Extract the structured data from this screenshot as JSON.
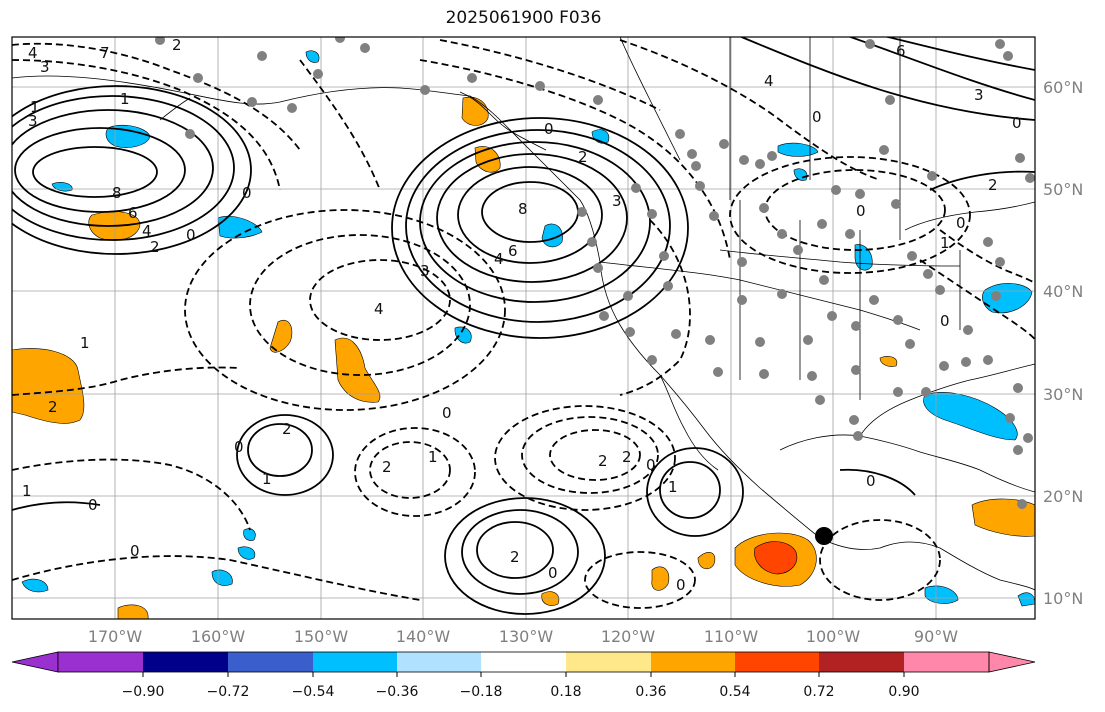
{
  "title": "2025061900 F036",
  "map": {
    "lat_labels": [
      "60°N",
      "50°N",
      "40°N",
      "30°N",
      "20°N",
      "10°N"
    ],
    "lon_labels": [
      "170°W",
      "160°W",
      "150°W",
      "140°W",
      "130°W",
      "120°W",
      "110°W",
      "100°W",
      "90°W"
    ],
    "colors": {
      "land_border": "#000000",
      "grid": "#a0a0a0",
      "station_dot": "#808080",
      "positive_shade": "#ffa500",
      "strong_positive_shade": "#ff4500",
      "negative_shade": "#00bfff"
    }
  },
  "contour_labels": [
    {
      "text": "4"
    },
    {
      "text": "3"
    },
    {
      "text": "7"
    },
    {
      "text": "2"
    },
    {
      "text": "1"
    },
    {
      "text": "3"
    },
    {
      "text": "8"
    },
    {
      "text": "6"
    },
    {
      "text": "4"
    },
    {
      "text": "2"
    },
    {
      "text": "0"
    },
    {
      "text": "1"
    },
    {
      "text": "0"
    },
    {
      "text": "8"
    },
    {
      "text": "6"
    },
    {
      "text": "4"
    },
    {
      "text": "3"
    },
    {
      "text": "2"
    },
    {
      "text": "3"
    },
    {
      "text": "4"
    },
    {
      "text": "1"
    },
    {
      "text": "0"
    },
    {
      "text": "2"
    },
    {
      "text": "1"
    },
    {
      "text": "0"
    },
    {
      "text": "2"
    },
    {
      "text": "1"
    },
    {
      "text": "0"
    },
    {
      "text": "1"
    },
    {
      "text": "2"
    },
    {
      "text": "0"
    },
    {
      "text": "2"
    },
    {
      "text": "0"
    },
    {
      "text": "2"
    },
    {
      "text": "1"
    },
    {
      "text": "0"
    },
    {
      "text": "2"
    },
    {
      "text": "0"
    },
    {
      "text": "6"
    },
    {
      "text": "4"
    },
    {
      "text": "3"
    },
    {
      "text": "0"
    },
    {
      "text": "0"
    },
    {
      "text": "2"
    },
    {
      "text": "0"
    },
    {
      "text": "1"
    },
    {
      "text": "0"
    },
    {
      "text": "0"
    },
    {
      "text": "0"
    },
    {
      "text": "0"
    }
  ],
  "colorbar": {
    "tick_labels": [
      "−0.90",
      "−0.72",
      "−0.54",
      "−0.36",
      "−0.18",
      "0.18",
      "0.36",
      "0.54",
      "0.72",
      "0.90"
    ],
    "colors": [
      "#9b30d0",
      "#00008b",
      "#3a5fcd",
      "#00bfff",
      "#b0e2ff",
      "#ffffff",
      "#ffe88a",
      "#ffa500",
      "#ff4500",
      "#b22222",
      "#ff88aa"
    ]
  }
}
